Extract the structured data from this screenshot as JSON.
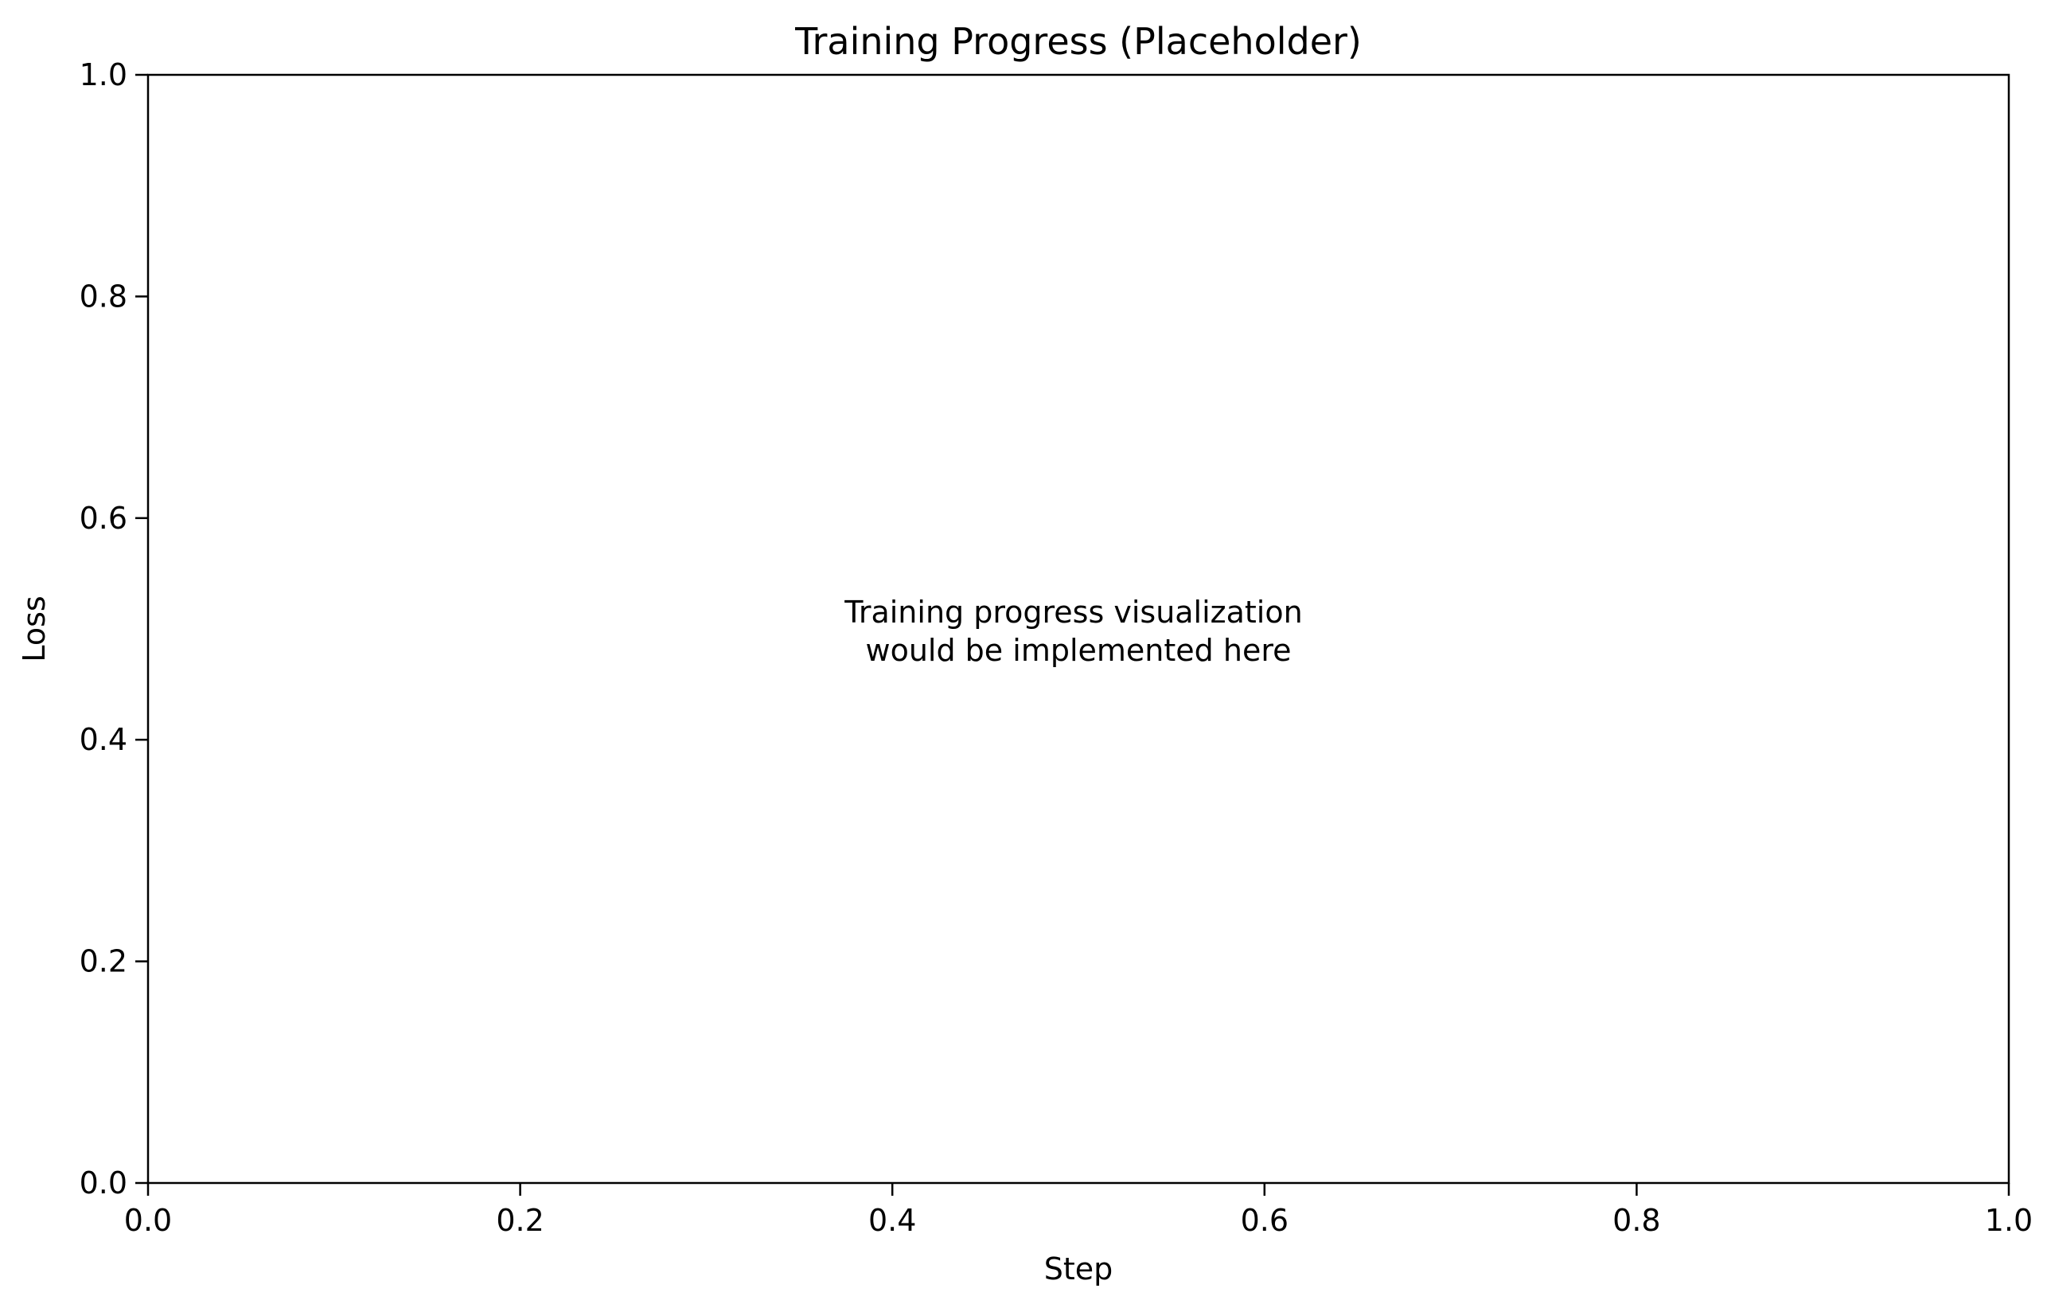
{
  "chart_data": {
    "type": "line",
    "title": "Training Progress (Placeholder)",
    "xlabel": "Step",
    "ylabel": "Loss",
    "xlim": [
      0.0,
      1.0
    ],
    "ylim": [
      0.0,
      1.0
    ],
    "x_ticks": [
      0.0,
      0.2,
      0.4,
      0.6,
      0.8,
      1.0
    ],
    "y_ticks": [
      0.0,
      0.2,
      0.4,
      0.6,
      0.8,
      1.0
    ],
    "x_tick_labels": [
      "0.0",
      "0.2",
      "0.4",
      "0.6",
      "0.8",
      "1.0"
    ],
    "y_tick_labels": [
      "0.0",
      "0.2",
      "0.4",
      "0.6",
      "0.8",
      "1.0"
    ],
    "grid": false,
    "series": [],
    "annotation": {
      "lines": [
        "Training progress visualization",
        "would be implemented here"
      ],
      "x": 0.5,
      "y": 0.5
    }
  }
}
